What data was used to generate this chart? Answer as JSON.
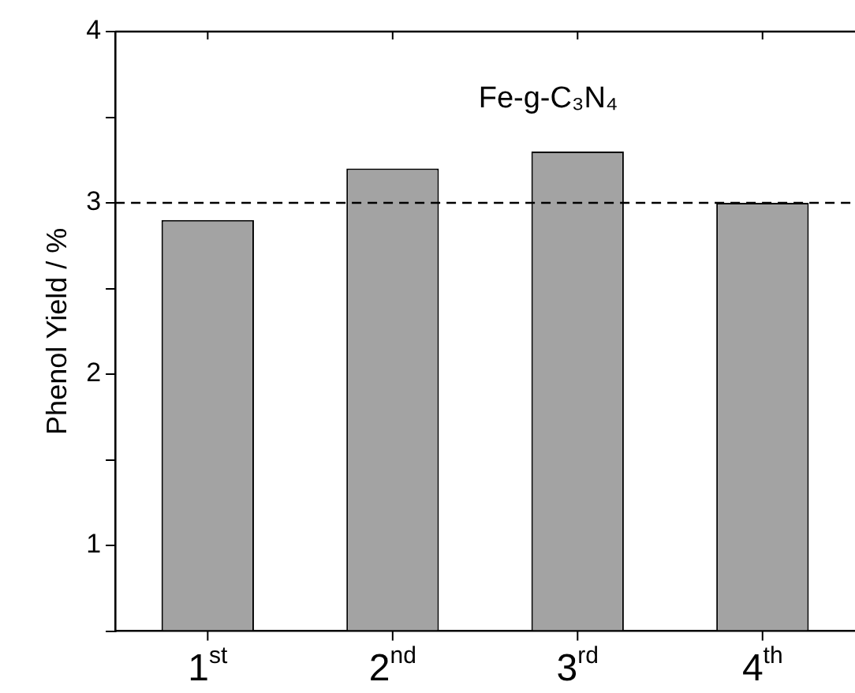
{
  "chart_data": {
    "type": "bar",
    "ylabel": "Phenol Yield / %",
    "categories": [
      "1$^{st}$",
      "2$^{nd}$",
      "3$^{rd}$",
      "4$^{th}$"
    ],
    "values": [
      2.9,
      3.2,
      3.3,
      3.0
    ],
    "color": "#a3a3a3",
    "ylim": [
      0.5,
      4
    ],
    "yticks": [
      {
        "value": 0.5,
        "label": null
      },
      1,
      {
        "value": 1.5,
        "label": null
      },
      2,
      {
        "value": 2.5,
        "label": null
      },
      3,
      {
        "value": 3.5,
        "label": null
      },
      4
    ],
    "ref_lines": [
      {
        "axis": "y",
        "value": 3,
        "color": "#000000",
        "line_style": "dashed"
      }
    ],
    "annotations": [
      "Fe-g-C₃N₄"
    ],
    "grid": false,
    "legend": false
  }
}
